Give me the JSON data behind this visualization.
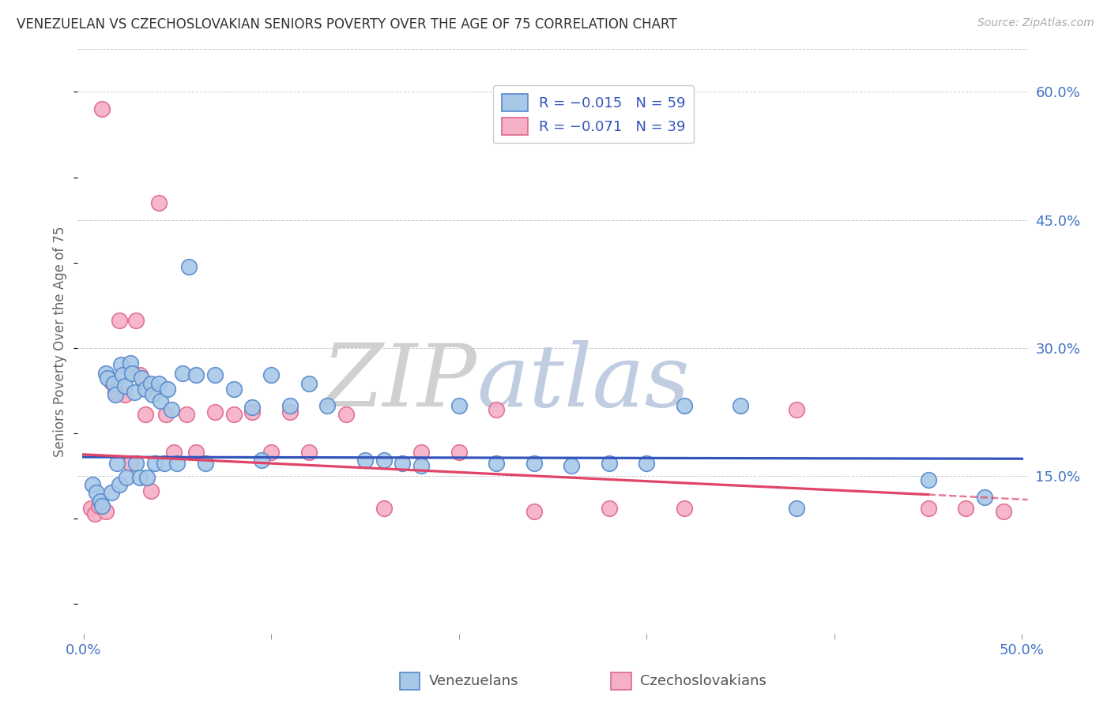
{
  "title": "VENEZUELAN VS CZECHOSLOVAKIAN SENIORS POVERTY OVER THE AGE OF 75 CORRELATION CHART",
  "source": "Source: ZipAtlas.com",
  "ylabel": "Seniors Poverty Over the Age of 75",
  "xlim": [
    -0.003,
    0.503
  ],
  "ylim": [
    -0.035,
    0.65
  ],
  "yticks_right": [
    0.15,
    0.3,
    0.45,
    0.6
  ],
  "ytick_labels_right": [
    "15.0%",
    "30.0%",
    "45.0%",
    "60.0%"
  ],
  "xtick_positions": [
    0.0,
    0.1,
    0.2,
    0.3,
    0.4,
    0.5
  ],
  "xticklabels": [
    "0.0%",
    "",
    "",
    "",
    "",
    "50.0%"
  ],
  "background_color": "#ffffff",
  "grid_color": "#cccccc",
  "venezuelan_color": "#a8c8e8",
  "czechoslovakian_color": "#f5b0c8",
  "venezuelan_edge": "#5588cc",
  "czechoslovakian_edge": "#e06888",
  "line_blue": "#3355bb",
  "line_pink": "#e04466",
  "venezuelans_x": [
    0.005,
    0.007,
    0.009,
    0.01,
    0.012,
    0.013,
    0.015,
    0.016,
    0.017,
    0.018,
    0.019,
    0.02,
    0.021,
    0.022,
    0.023,
    0.025,
    0.026,
    0.027,
    0.028,
    0.03,
    0.031,
    0.033,
    0.034,
    0.036,
    0.037,
    0.038,
    0.04,
    0.041,
    0.043,
    0.045,
    0.047,
    0.05,
    0.053,
    0.056,
    0.06,
    0.065,
    0.07,
    0.08,
    0.09,
    0.095,
    0.1,
    0.11,
    0.12,
    0.13,
    0.15,
    0.16,
    0.17,
    0.18,
    0.2,
    0.22,
    0.24,
    0.26,
    0.28,
    0.3,
    0.32,
    0.35,
    0.38,
    0.45,
    0.48
  ],
  "venezuelans_y": [
    0.14,
    0.13,
    0.12,
    0.115,
    0.27,
    0.265,
    0.13,
    0.258,
    0.245,
    0.165,
    0.14,
    0.28,
    0.268,
    0.255,
    0.148,
    0.282,
    0.27,
    0.248,
    0.165,
    0.148,
    0.265,
    0.252,
    0.148,
    0.258,
    0.245,
    0.165,
    0.258,
    0.238,
    0.165,
    0.252,
    0.228,
    0.165,
    0.27,
    0.395,
    0.268,
    0.165,
    0.268,
    0.252,
    0.23,
    0.168,
    0.268,
    0.232,
    0.258,
    0.232,
    0.168,
    0.168,
    0.165,
    0.162,
    0.232,
    0.165,
    0.165,
    0.162,
    0.165,
    0.165,
    0.232,
    0.232,
    0.112,
    0.145,
    0.125
  ],
  "czechoslovakians_x": [
    0.004,
    0.006,
    0.008,
    0.01,
    0.012,
    0.015,
    0.017,
    0.019,
    0.022,
    0.025,
    0.028,
    0.03,
    0.033,
    0.036,
    0.04,
    0.044,
    0.048,
    0.055,
    0.06,
    0.07,
    0.08,
    0.09,
    0.1,
    0.11,
    0.12,
    0.14,
    0.16,
    0.18,
    0.2,
    0.22,
    0.24,
    0.28,
    0.32,
    0.38,
    0.45,
    0.47,
    0.49
  ],
  "czechoslovakians_y": [
    0.112,
    0.105,
    0.115,
    0.58,
    0.108,
    0.26,
    0.248,
    0.332,
    0.245,
    0.165,
    0.332,
    0.268,
    0.222,
    0.132,
    0.47,
    0.222,
    0.178,
    0.222,
    0.178,
    0.225,
    0.222,
    0.225,
    0.178,
    0.225,
    0.178,
    0.222,
    0.112,
    0.178,
    0.178,
    0.228,
    0.108,
    0.112,
    0.112,
    0.228,
    0.112,
    0.112,
    0.108
  ],
  "ven_line_x": [
    0.0,
    0.5
  ],
  "ven_line_y": [
    0.172,
    0.17
  ],
  "cze_line_x0": 0.0,
  "cze_line_x1": 0.45,
  "cze_line_x2": 0.503,
  "cze_line_y0": 0.175,
  "cze_line_y1": 0.128,
  "cze_line_y2": 0.122
}
